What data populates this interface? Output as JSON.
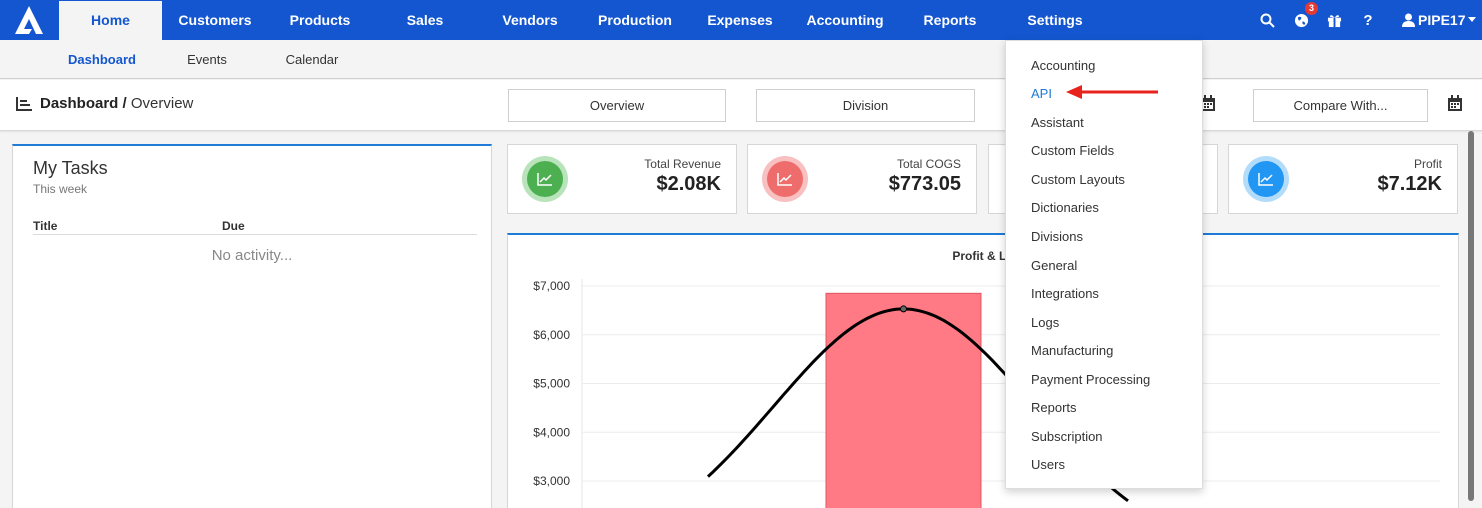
{
  "nav": {
    "items": [
      "Home",
      "Customers",
      "Products",
      "Sales",
      "Vendors",
      "Production",
      "Expenses",
      "Accounting",
      "Reports",
      "Settings"
    ],
    "active": "Home",
    "notification_count": "3",
    "user": "PIPE17",
    "colors": {
      "primary": "#1356cf",
      "badge": "#e53935"
    }
  },
  "subnav": {
    "items": [
      "Dashboard",
      "Events",
      "Calendar"
    ],
    "active": "Dashboard"
  },
  "header": {
    "title": "Dashboard /",
    "subtitle": "Overview",
    "buttons": {
      "overview": "Overview",
      "division": "Division",
      "compare": "Compare With..."
    }
  },
  "tasks": {
    "title": "My Tasks",
    "period": "This week",
    "columns": [
      "Title",
      "Due"
    ],
    "empty": "No activity..."
  },
  "kpis": [
    {
      "label": "Total Revenue",
      "value": "$2.08K",
      "color": "#4caf50"
    },
    {
      "label": "Total COGS",
      "value": "$773.05",
      "color": "#ef5350"
    },
    {
      "label": "",
      "value": "",
      "color": ""
    },
    {
      "label": "Profit",
      "value": "$7.12K",
      "color": "#2196f3"
    }
  ],
  "chart_title": "Profit & Lo",
  "chart_data": {
    "type": "bar",
    "title": "Profit & Lo",
    "y_ticks": [
      "$7,000",
      "$6,000",
      "$5,000",
      "$4,000",
      "$3,000"
    ],
    "ylim": [
      2600,
      7200
    ],
    "bar": {
      "value": 6850,
      "color": "#ff7a85"
    },
    "line_peak": 6530,
    "grid": true
  },
  "settings_menu": {
    "items": [
      "Accounting",
      "API",
      "Assistant",
      "Custom Fields",
      "Custom Layouts",
      "Dictionaries",
      "Divisions",
      "General",
      "Integrations",
      "Logs",
      "Manufacturing",
      "Payment Processing",
      "Reports",
      "Subscription",
      "Users"
    ],
    "highlighted": "API"
  }
}
